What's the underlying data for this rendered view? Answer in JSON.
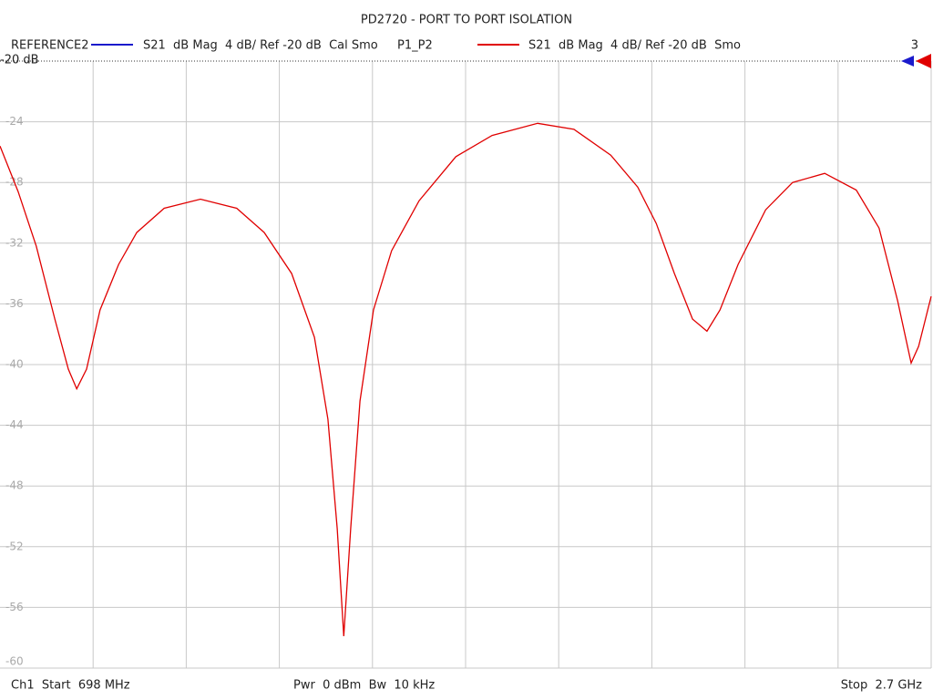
{
  "chart_data": {
    "type": "line",
    "title": "PD2720 - PORT TO PORT ISOLATION",
    "reference_trace": {
      "name": "REFERENCE2",
      "color": "#1a1acc",
      "description": "S21  dB Mag  4 dB/ Ref -20 dB  Cal Smo"
    },
    "series": [
      {
        "name": "P1_P2",
        "color": "#e00000",
        "description": "S21  dB Mag  4 dB/ Ref -20 dB  Smo",
        "values": [
          -25.6,
          -28.6,
          -32.2,
          -37.0,
          -40.3,
          -41.6,
          -40.3,
          -36.4,
          -33.4,
          -31.3,
          -29.7,
          -29.1,
          -29.7,
          -31.3,
          -34.0,
          -38.2,
          -43.6,
          -50.8,
          -57.9,
          -50.8,
          -42.4,
          -36.4,
          -32.5,
          -29.2,
          -26.3,
          -24.9,
          -24.1,
          -24.5,
          -26.2,
          -28.3,
          -30.7,
          -34.0,
          -37.0,
          -37.8,
          -36.4,
          -33.4,
          -29.8,
          -28.0,
          -27.4,
          -28.5,
          -31.0,
          -35.8,
          -39.9,
          -38.8,
          -35.5
        ]
      }
    ],
    "x": [
      698,
      737,
      776,
      816,
      845,
      863,
      884,
      913,
      953,
      992,
      1051,
      1129,
      1207,
      1266,
      1325,
      1374,
      1403,
      1423,
      1437,
      1452,
      1472,
      1501,
      1540,
      1599,
      1678,
      1756,
      1854,
      1932,
      2011,
      2069,
      2109,
      2148,
      2187,
      2218,
      2246,
      2285,
      2344,
      2402,
      2471,
      2539,
      2588,
      2628,
      2657,
      2673,
      2700
    ],
    "xlim": [
      698,
      2700
    ],
    "ylim": [
      -60,
      -20
    ],
    "yticks": [
      -24,
      -28,
      -32,
      -36,
      -40,
      -44,
      -48,
      -52,
      -56,
      -60
    ],
    "ref": {
      "value": -20,
      "label": "-20 dB"
    },
    "trace_count": "3",
    "footer": {
      "start": "Ch1  Start  698 MHz",
      "power": "Pwr  0 dBm  Bw  10 kHz",
      "stop": "Stop  2.7 GHz"
    },
    "grid": true
  }
}
